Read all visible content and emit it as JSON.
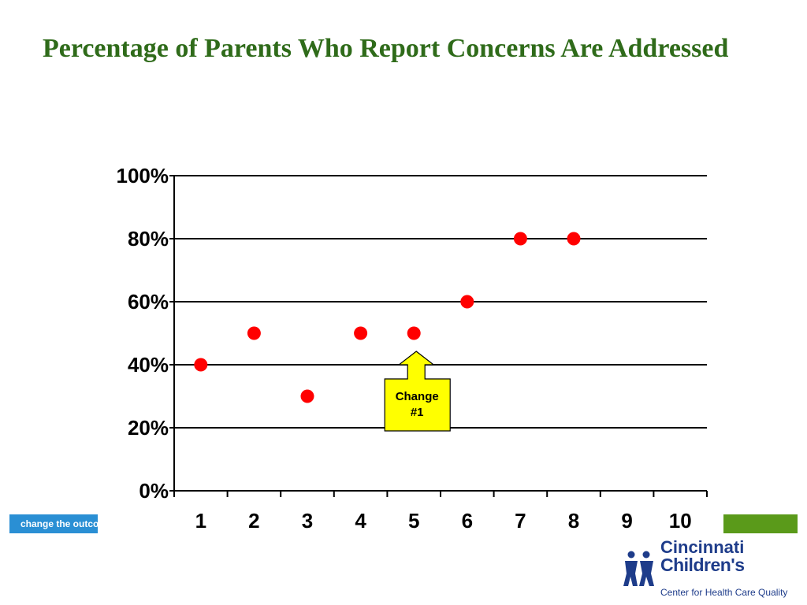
{
  "title": "Percentage of Parents Who Report Concerns Are Addressed",
  "footer": {
    "tagline": "change the outcome"
  },
  "logo": {
    "line1": "Cincinnati",
    "line2": "Children's",
    "subtitle": "Center for Health Care Quality"
  },
  "colors": {
    "title": "#2f6b1a",
    "point": "#ff0000",
    "callout_fill": "#ffff00",
    "footer_blue": "#2a8fd4",
    "footer_green": "#5a9a1a",
    "logo": "#1e3c8a"
  },
  "chart_data": {
    "type": "scatter",
    "xlabel": "",
    "ylabel": "",
    "x_ticks": [
      "1",
      "2",
      "3",
      "4",
      "5",
      "6",
      "7",
      "8",
      "9",
      "10"
    ],
    "y_ticks": [
      "0%",
      "20%",
      "40%",
      "60%",
      "80%",
      "100%"
    ],
    "xlim": [
      0.5,
      10.5
    ],
    "ylim": [
      0,
      100
    ],
    "grid": true,
    "series": [
      {
        "x": [
          1,
          2,
          3,
          4,
          5,
          6,
          7,
          8
        ],
        "y": [
          40,
          50,
          30,
          50,
          50,
          60,
          80,
          80
        ]
      }
    ],
    "annotations": [
      {
        "text_lines": [
          "Change",
          "#1"
        ],
        "x": 5,
        "y": 50,
        "style": "up-arrow-callout"
      }
    ]
  }
}
